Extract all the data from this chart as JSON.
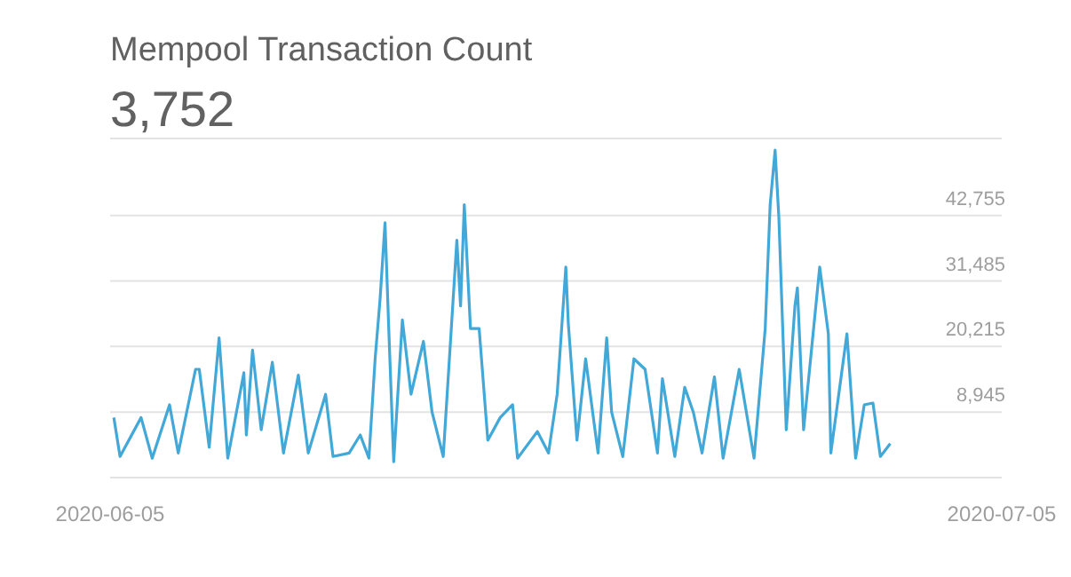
{
  "chart_data": {
    "type": "line",
    "title": "Mempool Transaction Count",
    "subtitle": "3,752",
    "x": [
      "2020-06-05T03:00",
      "2020-06-05T08:00",
      "2020-06-06T01:00",
      "2020-06-06T10:00",
      "2020-06-07T00:00",
      "2020-06-07T07:00",
      "2020-06-07T21:00",
      "2020-06-08T00:00",
      "2020-06-08T08:00",
      "2020-06-08T16:00",
      "2020-06-08T23:00",
      "2020-06-09T12:00",
      "2020-06-09T14:00",
      "2020-06-09T19:00",
      "2020-06-10T02:00",
      "2020-06-10T11:00",
      "2020-06-10T20:00",
      "2020-06-11T08:00",
      "2020-06-11T16:00",
      "2020-06-12T06:00",
      "2020-06-12T12:00",
      "2020-06-13T01:00",
      "2020-06-13T10:00",
      "2020-06-13T17:00",
      "2020-06-13T22:00",
      "2020-06-14T02:00",
      "2020-06-14T06:00",
      "2020-06-14T09:00",
      "2020-06-14T13:00",
      "2020-06-14T20:00",
      "2020-06-15T03:00",
      "2020-06-15T13:00",
      "2020-06-15T20:00",
      "2020-06-16T05:00",
      "2020-06-16T16:00",
      "2020-06-16T19:00",
      "2020-06-16T22:00",
      "2020-06-17T03:00",
      "2020-06-17T10:00",
      "2020-06-17T17:00",
      "2020-06-18T03:00",
      "2020-06-18T13:00",
      "2020-06-18T17:00",
      "2020-06-19T09:00",
      "2020-06-19T18:00",
      "2020-06-20T01:00",
      "2020-06-20T08:00",
      "2020-06-20T10:00",
      "2020-06-20T17:00",
      "2020-06-21T00:00",
      "2020-06-21T10:00",
      "2020-06-21T17:00",
      "2020-06-21T21:00",
      "2020-06-22T06:00",
      "2020-06-22T15:00",
      "2020-06-23T00:00",
      "2020-06-23T10:00",
      "2020-06-23T14:00",
      "2020-06-24T00:00",
      "2020-06-24T08:00",
      "2020-06-24T15:00",
      "2020-06-24T22:00",
      "2020-06-25T08:00",
      "2020-06-25T15:00",
      "2020-06-26T04:00",
      "2020-06-26T16:00",
      "2020-06-27T01:00",
      "2020-06-27T05:00",
      "2020-06-27T09:00",
      "2020-06-27T12:00",
      "2020-06-27T18:00",
      "2020-06-28T01:00",
      "2020-06-28T03:00",
      "2020-06-28T08:00",
      "2020-06-28T21:00",
      "2020-06-29T04:00",
      "2020-06-29T06:00",
      "2020-06-29T19:00",
      "2020-06-30T02:00",
      "2020-06-30T09:00",
      "2020-06-30T16:00",
      "2020-06-30T22:00",
      "2020-07-01T06:00"
    ],
    "series": [
      {
        "color": "#41a8d8",
        "values": [
          8000,
          1300,
          8000,
          1000,
          10200,
          1900,
          16300,
          16300,
          2900,
          21700,
          1000,
          15700,
          5000,
          19600,
          5900,
          17500,
          1900,
          15300,
          1900,
          12000,
          1300,
          1900,
          5000,
          1000,
          18100,
          28400,
          41500,
          23300,
          400,
          24800,
          12000,
          21100,
          8900,
          1300,
          38500,
          27200,
          44600,
          23300,
          23300,
          4100,
          8000,
          10200,
          1000,
          5600,
          1900,
          12000,
          33900,
          24200,
          4100,
          18100,
          1900,
          21700,
          8900,
          1300,
          18100,
          16300,
          1900,
          14700,
          1300,
          13200,
          8900,
          1900,
          15000,
          1000,
          16300,
          1000,
          23300,
          44600,
          54000,
          42500,
          5900,
          27200,
          30300,
          5900,
          33900,
          22400,
          1900,
          22400,
          1000,
          10200,
          10500,
          1300,
          3500
        ]
      }
    ],
    "xlim": [
      "2020-06-05",
      "2020-07-05"
    ],
    "xticks": [
      "2020-06-05",
      "2020-07-05"
    ],
    "ylim": [
      -2325,
      56000
    ],
    "yticks": [
      {
        "value": -2325,
        "label": null
      },
      {
        "value": 8945,
        "label": "8,945"
      },
      {
        "value": 20215,
        "label": "20,215"
      },
      {
        "value": 31485,
        "label": "31,485"
      },
      {
        "value": 42755,
        "label": "42,755"
      }
    ],
    "grid": "y"
  }
}
